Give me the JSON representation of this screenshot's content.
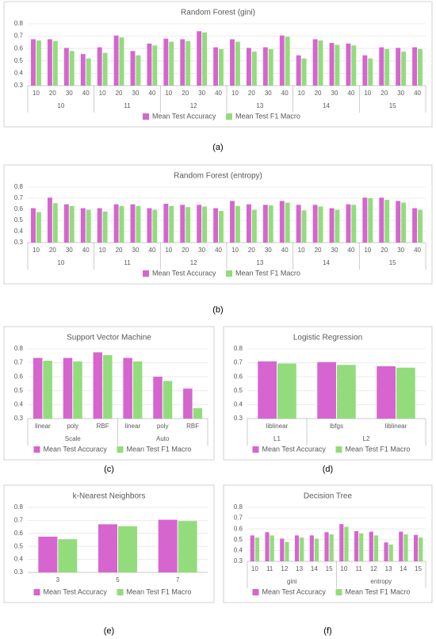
{
  "chart_data": [
    {
      "type": "bar",
      "title": "Random Forest (gini)",
      "label": "(a)",
      "groups": [
        {
          "name": "10",
          "categories": [
            "10",
            "20",
            "30",
            "40"
          ]
        },
        {
          "name": "11",
          "categories": [
            "10",
            "20",
            "30",
            "40"
          ]
        },
        {
          "name": "12",
          "categories": [
            "10",
            "20",
            "30",
            "40"
          ]
        },
        {
          "name": "13",
          "categories": [
            "10",
            "20",
            "30",
            "40"
          ]
        },
        {
          "name": "14",
          "categories": [
            "10",
            "20",
            "30",
            "40"
          ]
        },
        {
          "name": "15",
          "categories": [
            "10",
            "20",
            "30",
            "40"
          ]
        }
      ],
      "series": [
        {
          "name": "Mean Test Accuracy",
          "color": "#d665cf",
          "values": [
            0.675,
            0.675,
            0.605,
            0.555,
            0.61,
            0.705,
            0.58,
            0.64,
            0.68,
            0.675,
            0.74,
            0.61,
            0.675,
            0.605,
            0.61,
            0.705,
            0.545,
            0.675,
            0.645,
            0.64,
            0.545,
            0.61,
            0.605,
            0.61
          ]
        },
        {
          "name": "Mean Test F1 Macro",
          "color": "#92dc7c",
          "values": [
            0.665,
            0.66,
            0.58,
            0.52,
            0.565,
            0.69,
            0.545,
            0.625,
            0.655,
            0.66,
            0.73,
            0.595,
            0.655,
            0.575,
            0.595,
            0.695,
            0.52,
            0.665,
            0.63,
            0.625,
            0.52,
            0.595,
            0.575,
            0.595
          ]
        }
      ],
      "ylim": [
        0.3,
        0.8
      ],
      "yticks": [
        0.3,
        0.4,
        0.5,
        0.6,
        0.7,
        0.8
      ],
      "grid": true
    },
    {
      "type": "bar",
      "title": "Random Forest (entropy)",
      "label": "(b)",
      "groups": [
        {
          "name": "10",
          "categories": [
            "10",
            "20",
            "30",
            "40"
          ]
        },
        {
          "name": "11",
          "categories": [
            "10",
            "20",
            "30",
            "40"
          ]
        },
        {
          "name": "12",
          "categories": [
            "10",
            "20",
            "30",
            "40"
          ]
        },
        {
          "name": "13",
          "categories": [
            "10",
            "20",
            "30",
            "40"
          ]
        },
        {
          "name": "14",
          "categories": [
            "10",
            "20",
            "30",
            "40"
          ]
        },
        {
          "name": "15",
          "categories": [
            "10",
            "20",
            "30",
            "40"
          ]
        }
      ],
      "series": [
        {
          "name": "Mean Test Accuracy",
          "color": "#d665cf",
          "values": [
            0.61,
            0.705,
            0.645,
            0.61,
            0.61,
            0.645,
            0.645,
            0.61,
            0.65,
            0.64,
            0.64,
            0.61,
            0.675,
            0.645,
            0.64,
            0.675,
            0.64,
            0.64,
            0.61,
            0.645,
            0.705,
            0.705,
            0.675,
            0.61
          ]
        },
        {
          "name": "Mean Test F1 Macro",
          "color": "#92dc7c",
          "values": [
            0.575,
            0.655,
            0.63,
            0.595,
            0.58,
            0.63,
            0.63,
            0.595,
            0.63,
            0.62,
            0.625,
            0.585,
            0.63,
            0.595,
            0.635,
            0.66,
            0.59,
            0.625,
            0.595,
            0.64,
            0.7,
            0.685,
            0.66,
            0.595
          ]
        }
      ],
      "ylim": [
        0.3,
        0.8
      ],
      "yticks": [
        0.3,
        0.4,
        0.5,
        0.6,
        0.7,
        0.8
      ],
      "grid": true
    },
    {
      "type": "bar",
      "title": "Support Vector Machine",
      "label": "(c)",
      "groups": [
        {
          "name": "Scale",
          "categories": [
            "linear",
            "poly",
            "RBF"
          ]
        },
        {
          "name": "Auto",
          "categories": [
            "linear",
            "poly",
            "RBF"
          ]
        }
      ],
      "series": [
        {
          "name": "Mean Test Accuracy",
          "color": "#d665cf",
          "values": [
            0.735,
            0.735,
            0.775,
            0.735,
            0.6,
            0.515
          ]
        },
        {
          "name": "Mean Test F1 Macro",
          "color": "#92dc7c",
          "values": [
            0.715,
            0.71,
            0.755,
            0.71,
            0.57,
            0.375
          ]
        }
      ],
      "ylim": [
        0.3,
        0.8
      ],
      "yticks": [
        0.3,
        0.4,
        0.5,
        0.6,
        0.7,
        0.8
      ],
      "grid": true
    },
    {
      "type": "bar",
      "title": "Logistic Regression",
      "label": "(d)",
      "groups": [
        {
          "name": "L1",
          "categories": [
            "liblinear"
          ]
        },
        {
          "name": "L2",
          "categories": [
            "lbfgs",
            "liblinear"
          ]
        }
      ],
      "series": [
        {
          "name": "Mean Test Accuracy",
          "color": "#d665cf",
          "values": [
            0.71,
            0.705,
            0.675
          ]
        },
        {
          "name": "Mean Test F1 Macro",
          "color": "#92dc7c",
          "values": [
            0.695,
            0.685,
            0.665
          ]
        }
      ],
      "ylim": [
        0.3,
        0.8
      ],
      "yticks": [
        0.3,
        0.4,
        0.5,
        0.6,
        0.7,
        0.8
      ],
      "grid": true
    },
    {
      "type": "bar",
      "title": "k-Nearest Neighbors",
      "label": "(e)",
      "categories": [
        "3",
        "5",
        "7"
      ],
      "series": [
        {
          "name": "Mean Test Accuracy",
          "color": "#d665cf",
          "values": [
            0.575,
            0.67,
            0.705
          ]
        },
        {
          "name": "Mean Test F1 Macro",
          "color": "#92dc7c",
          "values": [
            0.555,
            0.655,
            0.695
          ]
        }
      ],
      "ylim": [
        0.3,
        0.8
      ],
      "yticks": [
        0.3,
        0.4,
        0.5,
        0.6,
        0.7,
        0.8
      ],
      "grid": true
    },
    {
      "type": "bar",
      "title": "Decision Tree",
      "label": "(f)",
      "groups": [
        {
          "name": "gini",
          "categories": [
            "10",
            "11",
            "12",
            "13",
            "14",
            "15"
          ]
        },
        {
          "name": "entropy",
          "categories": [
            "10",
            "11",
            "12",
            "13",
            "14",
            "15"
          ]
        }
      ],
      "series": [
        {
          "name": "Mean Test Accuracy",
          "color": "#d665cf",
          "values": [
            0.54,
            0.57,
            0.51,
            0.54,
            0.54,
            0.57,
            0.645,
            0.58,
            0.575,
            0.475,
            0.575,
            0.545
          ]
        },
        {
          "name": "Mean Test F1 Macro",
          "color": "#92dc7c",
          "values": [
            0.52,
            0.54,
            0.48,
            0.52,
            0.51,
            0.55,
            0.62,
            0.56,
            0.54,
            0.455,
            0.55,
            0.52
          ]
        }
      ],
      "ylim": [
        0.3,
        0.8
      ],
      "yticks": [
        0.3,
        0.4,
        0.5,
        0.6,
        0.7,
        0.8
      ],
      "grid": true
    }
  ]
}
